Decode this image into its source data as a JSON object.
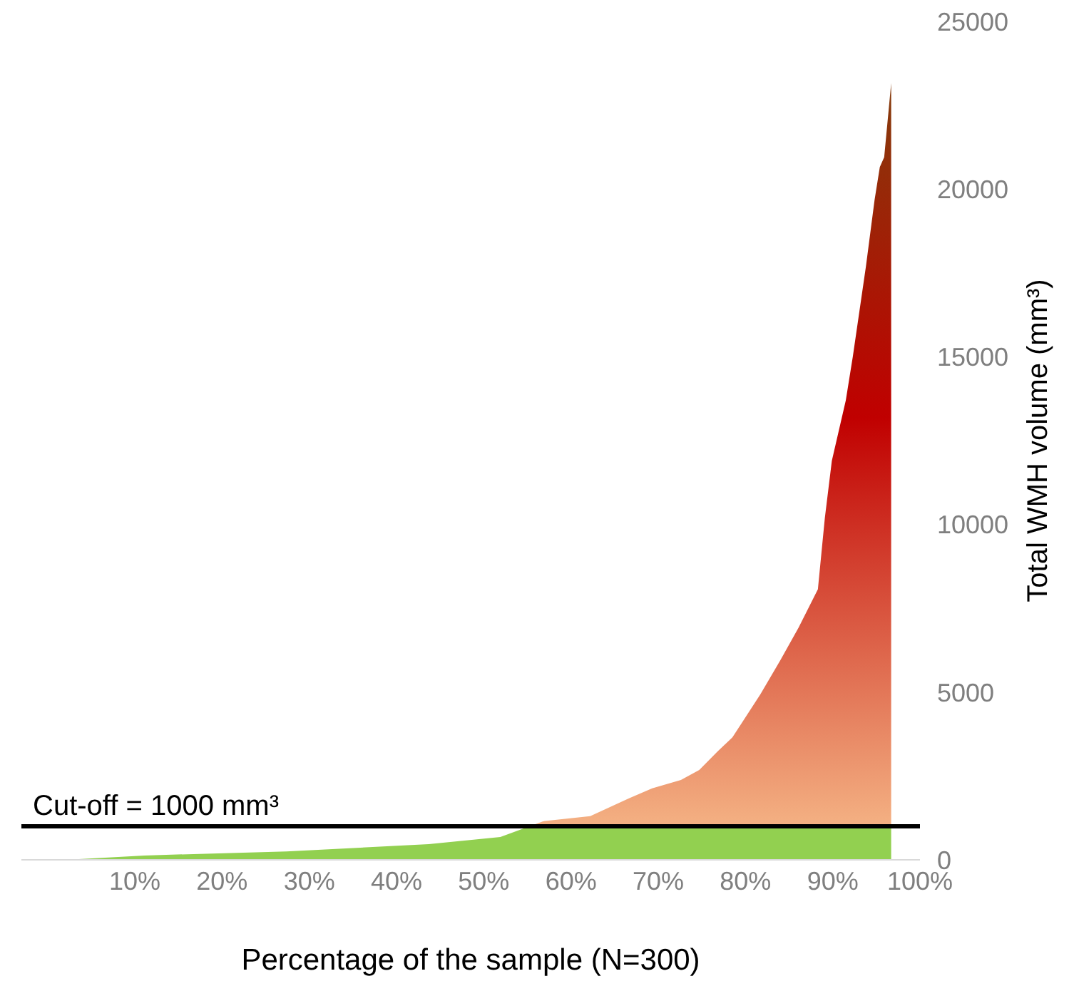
{
  "chart_data": {
    "type": "area",
    "xlabel": "Percentage of the sample (N=300)",
    "ylabel": "Total WMH volume (mm³)",
    "x": [
      -3,
      2.1,
      11.1,
      27.4,
      43.7,
      51.9,
      56.8,
      62.2,
      66.6,
      69.3,
      72.6,
      74.7,
      76.8,
      78.5,
      81.7,
      84.0,
      86.1,
      88.3,
      89.1,
      89.9,
      91.5,
      92.3,
      93.8,
      94.8,
      95.4,
      95.9,
      96.7
    ],
    "series": [
      {
        "color": "#c00000",
        "values": [
          0,
          0,
          130,
          250,
          470,
          680,
          1150,
          1300,
          1830,
          2130,
          2380,
          2680,
          3230,
          3650,
          4930,
          5950,
          6930,
          8070,
          10200,
          11900,
          13700,
          15000,
          17680,
          19680,
          20660,
          20950,
          23160
        ]
      }
    ],
    "xlim": [
      -3,
      100
    ],
    "xticks": [
      {
        "value": 10,
        "label": "10%"
      },
      {
        "value": 20,
        "label": "20%"
      },
      {
        "value": 30,
        "label": "30%"
      },
      {
        "value": 40,
        "label": "40%"
      },
      {
        "value": 50,
        "label": "50%"
      },
      {
        "value": 60,
        "label": "60%"
      },
      {
        "value": 70,
        "label": "70%"
      },
      {
        "value": 80,
        "label": "80%"
      },
      {
        "value": 90,
        "label": "90%"
      },
      {
        "value": 100,
        "label": "100%"
      }
    ],
    "ylim": [
      0,
      25000
    ],
    "yticks": [
      0,
      5000,
      10000,
      15000,
      20000,
      25000
    ],
    "ref_lines": [
      {
        "axis": "y",
        "value": 1000,
        "label": "Cut-off = 1000 mm³",
        "color": "#000000"
      }
    ],
    "grid": false,
    "legend": false
  }
}
